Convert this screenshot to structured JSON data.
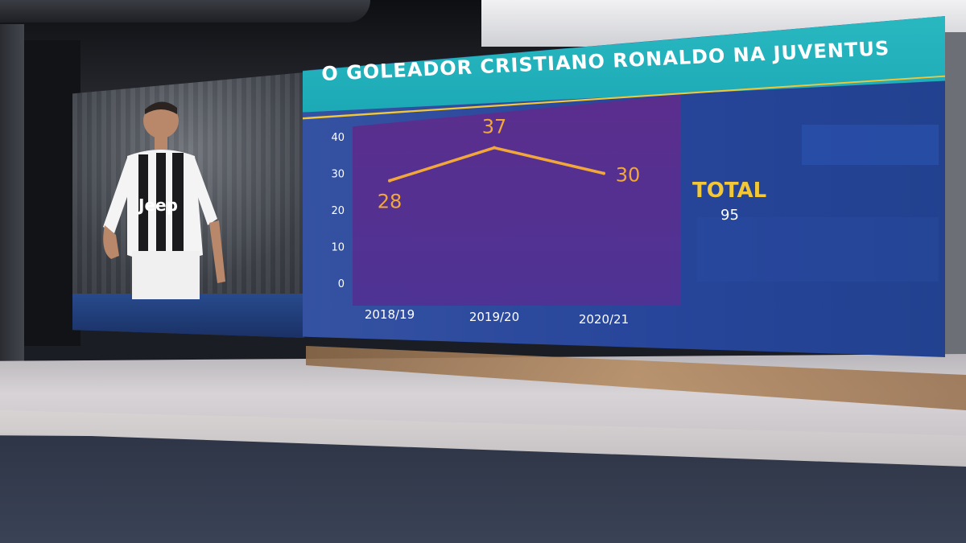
{
  "title": "O GOLEADOR CRISTIANO RONALDO NA JUVENTUS",
  "total": {
    "label": "TOTAL",
    "value": "95"
  },
  "photo": {
    "shirt_text": "Jeep"
  },
  "colors": {
    "line": "#f2a73b",
    "accent": "#f2c838",
    "title_bar": "#1ca9b6",
    "plot": "#54308f",
    "board": "#2b4a9e"
  },
  "chart_data": {
    "type": "line",
    "categories": [
      "2018/19",
      "2019/20",
      "2020/21"
    ],
    "values": [
      28,
      37,
      30
    ],
    "data_labels": [
      "28",
      "37",
      "30"
    ],
    "yticks": [
      "0",
      "10",
      "20",
      "30",
      "40"
    ],
    "ylim": [
      0,
      40
    ],
    "title": "O GOLEADOR CRISTIANO RONALDO NA JUVENTUS",
    "xlabel": "",
    "ylabel": "",
    "grid": false
  }
}
